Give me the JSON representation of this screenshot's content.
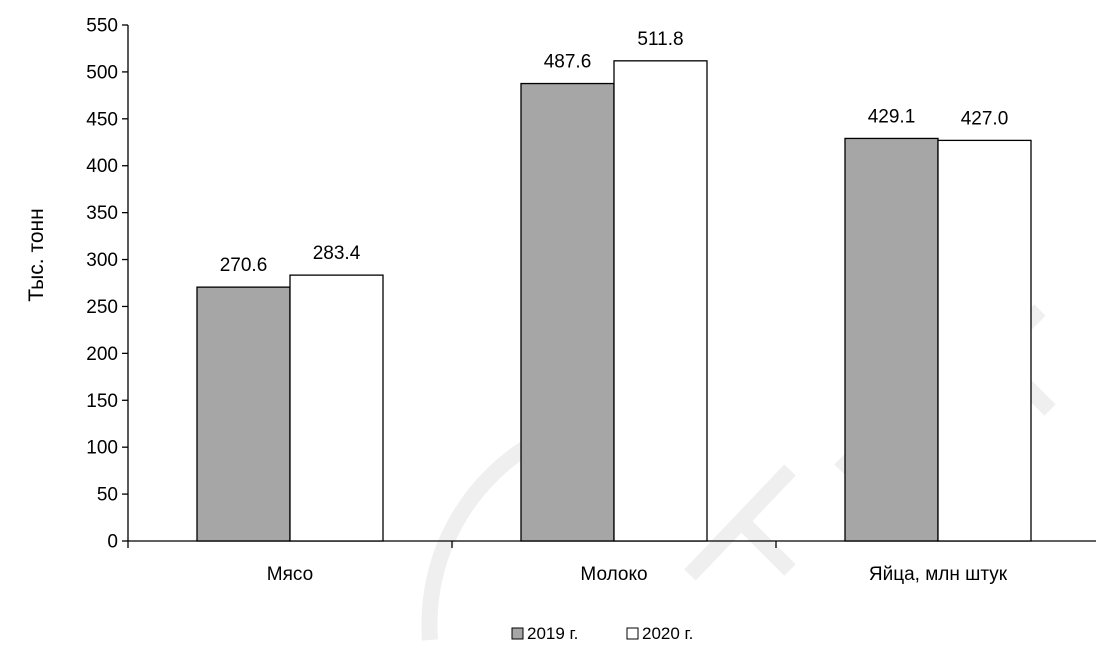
{
  "chart_data": {
    "type": "bar",
    "categories": [
      "Мясо",
      "Молоко",
      "Яйца, млн штук"
    ],
    "series": [
      {
        "name": "2019 г.",
        "values": [
          270.6,
          487.6,
          429.1
        ],
        "labels": [
          "270.6",
          "487.6",
          "429.1"
        ],
        "color": "#a6a6a6"
      },
      {
        "name": "2020 г.",
        "values": [
          283.4,
          511.8,
          427.0
        ],
        "labels": [
          "283.4",
          "511.8",
          "427.0"
        ],
        "color": "#ffffff"
      }
    ],
    "ylabel": "Тыс. тонн",
    "xlabel": "",
    "ylim": [
      0,
      550
    ],
    "yticks": [
      0,
      50,
      100,
      150,
      200,
      250,
      300,
      350,
      400,
      450,
      500,
      550
    ],
    "grid": false,
    "legend_position": "bottom-center"
  }
}
